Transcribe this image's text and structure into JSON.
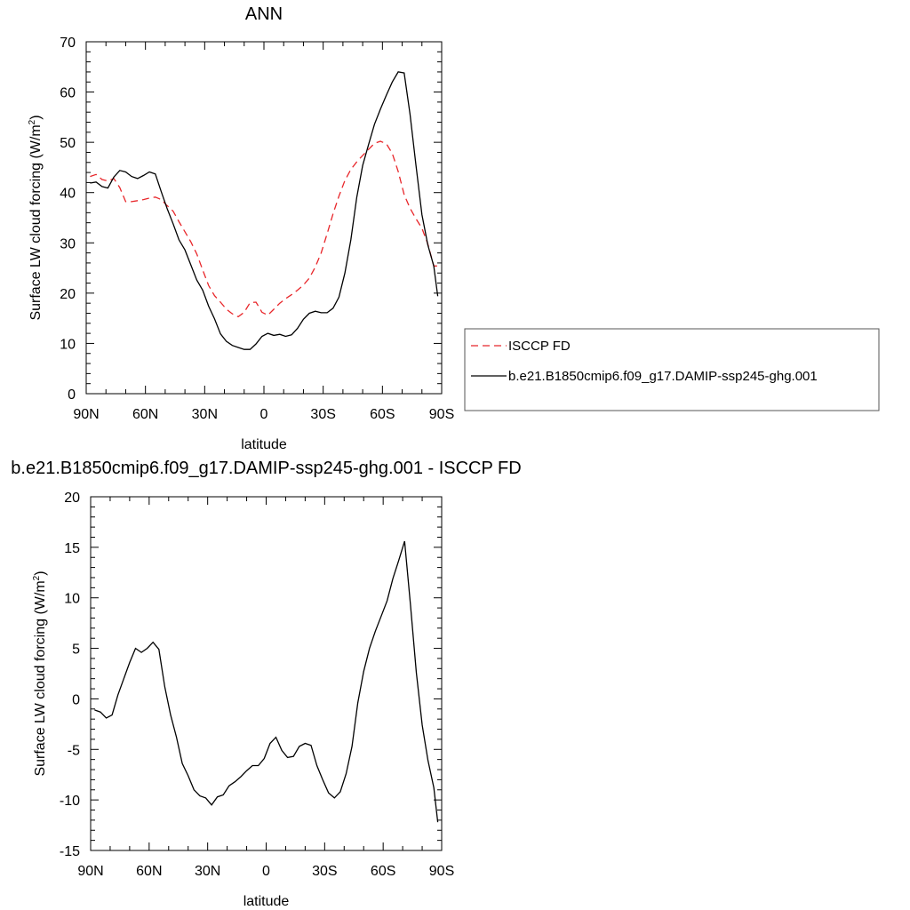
{
  "chart_data": [
    {
      "type": "line",
      "title": "ANN",
      "xlabel": "latitude",
      "ylabel": "Surface LW cloud forcing (W/m",
      "ylabel_sup": "2",
      "ylabel_close": ")",
      "xlim": [
        90,
        -90
      ],
      "ylim": [
        0,
        70
      ],
      "x_ticks": [
        {
          "value": 90,
          "label": "90N"
        },
        {
          "value": 60,
          "label": "60N"
        },
        {
          "value": 30,
          "label": "30N"
        },
        {
          "value": 0,
          "label": "0"
        },
        {
          "value": -30,
          "label": "30S"
        },
        {
          "value": -60,
          "label": "60S"
        },
        {
          "value": -90,
          "label": "90S"
        }
      ],
      "y_ticks": [
        0,
        10,
        20,
        30,
        40,
        50,
        60,
        70
      ],
      "legend": {
        "placement": "right"
      },
      "series": [
        {
          "name": "ISCCP FD",
          "color": "#e8262a",
          "dash": "dashed",
          "x": [
            88,
            85,
            82,
            79,
            76,
            73,
            70,
            67,
            64,
            61,
            58,
            55,
            52,
            49,
            46,
            43,
            40,
            37,
            34,
            31,
            28,
            25,
            22,
            19,
            16,
            13,
            10,
            7,
            4,
            1,
            -2,
            -5,
            -8,
            -11,
            -14,
            -17,
            -20,
            -23,
            -26,
            -29,
            -32,
            -35,
            -38,
            -41,
            -44,
            -47,
            -50,
            -53,
            -56,
            -59,
            -62,
            -65,
            -68,
            -71,
            -74,
            -77,
            -80,
            -83,
            -86,
            -88
          ],
          "y": [
            43.2,
            43.6,
            42.6,
            42.3,
            42.8,
            41.0,
            38.2,
            38.2,
            38.4,
            38.6,
            38.9,
            39.1,
            38.6,
            37.4,
            36.3,
            34.2,
            32.2,
            30.2,
            27.8,
            24.6,
            21.5,
            19.5,
            18.2,
            16.8,
            15.9,
            15.3,
            16.2,
            18.1,
            18.2,
            16.2,
            15.6,
            16.8,
            18.0,
            18.9,
            19.7,
            20.6,
            21.6,
            23.0,
            25.2,
            28.0,
            31.8,
            35.8,
            39.3,
            42.4,
            44.6,
            46.1,
            47.4,
            48.6,
            49.8,
            50.2,
            49.7,
            47.8,
            44.2,
            39.6,
            36.9,
            34.8,
            32.9,
            29.8,
            25.4,
            25.4
          ]
        },
        {
          "name": "b.e21.B1850cmip6.f09_g17.DAMIP-ssp245-ghg.001",
          "color": "#000000",
          "dash": "solid",
          "x": [
            88,
            85,
            82,
            79,
            76,
            73,
            70,
            67,
            64,
            61,
            58,
            55,
            52,
            49,
            46,
            43,
            40,
            37,
            34,
            31,
            28,
            25,
            22,
            19,
            16,
            13,
            10,
            7,
            4,
            1,
            -2,
            -5,
            -8,
            -11,
            -14,
            -17,
            -20,
            -23,
            -26,
            -29,
            -32,
            -35,
            -38,
            -41,
            -44,
            -47,
            -50,
            -53,
            -56,
            -59,
            -62,
            -65,
            -68,
            -71,
            -74,
            -77,
            -80,
            -83,
            -86,
            -88
          ],
          "y": [
            41.9,
            42.1,
            41.2,
            40.9,
            43.1,
            44.4,
            44.1,
            43.2,
            42.8,
            43.4,
            44.1,
            43.7,
            40.2,
            36.8,
            33.8,
            30.6,
            28.6,
            25.6,
            22.6,
            20.6,
            17.4,
            14.9,
            11.9,
            10.4,
            9.6,
            9.2,
            8.8,
            8.8,
            9.9,
            11.4,
            12.0,
            11.6,
            11.8,
            11.4,
            11.7,
            13.0,
            14.8,
            16.0,
            16.4,
            16.1,
            16.1,
            17.0,
            19.2,
            24.0,
            30.6,
            39.0,
            45.4,
            49.6,
            53.6,
            56.6,
            59.4,
            62.0,
            64.0,
            63.8,
            55.6,
            45.4,
            35.6,
            29.6,
            25.4,
            19.4
          ]
        }
      ]
    },
    {
      "type": "line",
      "title": "b.e21.B1850cmip6.f09_g17.DAMIP-ssp245-ghg.001 - ISCCP FD",
      "xlabel": "latitude",
      "ylabel": "Surface LW cloud forcing (W/m",
      "ylabel_sup": "2",
      "ylabel_close": ")",
      "xlim": [
        90,
        -90
      ],
      "ylim": [
        -15,
        20
      ],
      "x_ticks": [
        {
          "value": 90,
          "label": "90N"
        },
        {
          "value": 60,
          "label": "60N"
        },
        {
          "value": 30,
          "label": "30N"
        },
        {
          "value": 0,
          "label": "0"
        },
        {
          "value": -30,
          "label": "30S"
        },
        {
          "value": -60,
          "label": "60S"
        },
        {
          "value": -90,
          "label": "90S"
        }
      ],
      "y_ticks": [
        -15,
        -10,
        -5,
        0,
        5,
        10,
        15,
        20
      ],
      "series": [
        {
          "color": "#000000",
          "dash": "solid",
          "x": [
            88,
            85,
            82,
            79,
            76,
            73,
            70,
            67,
            64,
            61,
            58,
            55,
            52,
            49,
            46,
            43,
            40,
            37,
            34,
            31,
            28,
            25,
            22,
            19,
            16,
            13,
            10,
            7,
            4,
            1,
            -2,
            -5,
            -8,
            -11,
            -14,
            -17,
            -20,
            -23,
            -26,
            -29,
            -32,
            -35,
            -38,
            -41,
            -44,
            -47,
            -50,
            -53,
            -56,
            -59,
            -62,
            -65,
            -68,
            -71,
            -74,
            -77,
            -80,
            -83,
            -86,
            -88
          ],
          "y": [
            -1.1,
            -1.3,
            -1.9,
            -1.6,
            0.4,
            2.0,
            3.6,
            5.0,
            4.6,
            5.0,
            5.6,
            4.9,
            1.2,
            -1.6,
            -3.8,
            -6.4,
            -7.6,
            -9.0,
            -9.6,
            -9.8,
            -10.5,
            -9.7,
            -9.5,
            -8.6,
            -8.2,
            -7.7,
            -7.1,
            -6.6,
            -6.6,
            -5.9,
            -4.4,
            -3.8,
            -5.1,
            -5.8,
            -5.7,
            -4.7,
            -4.4,
            -4.6,
            -6.6,
            -8.0,
            -9.3,
            -9.8,
            -9.2,
            -7.4,
            -4.7,
            -0.4,
            2.7,
            5.0,
            6.7,
            8.2,
            9.7,
            11.9,
            13.7,
            15.6,
            9.3,
            2.6,
            -2.6,
            -6.1,
            -8.8,
            -12.2
          ]
        }
      ]
    }
  ]
}
